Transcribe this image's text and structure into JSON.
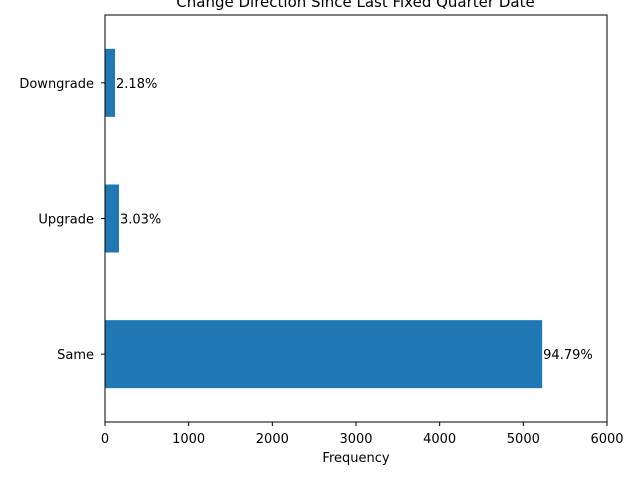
{
  "chart_data": {
    "type": "bar",
    "orientation": "horizontal",
    "title": "Change Direction Since Last Fixed Quarter Date",
    "xlabel": "Frequency",
    "ylabel": "",
    "xlim": [
      0,
      6000
    ],
    "x_ticks": [
      0,
      1000,
      2000,
      3000,
      4000,
      5000,
      6000
    ],
    "categories": [
      "Same",
      "Upgrade",
      "Downgrade"
    ],
    "values": [
      5225,
      167,
      120
    ],
    "data_labels": [
      "94.79%",
      "3.03%",
      "2.18%"
    ],
    "bar_color": "#1f77b4",
    "grid": false
  }
}
